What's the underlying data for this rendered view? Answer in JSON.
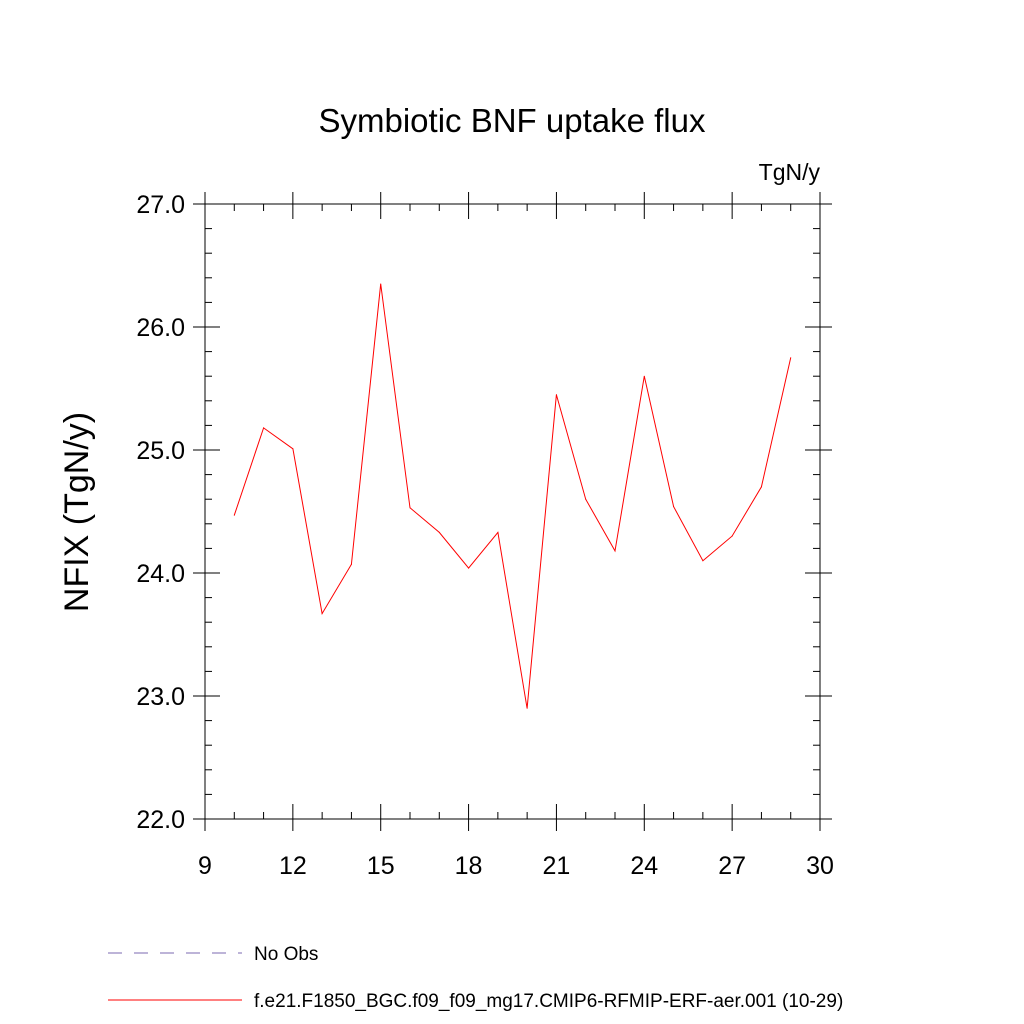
{
  "chart_data": {
    "type": "line",
    "title": "Symbiotic BNF uptake flux",
    "units_label": "TgN/y",
    "ylabel": "NFIX  (TgN/y)",
    "xlabel": "",
    "xlim": [
      9,
      30
    ],
    "ylim": [
      22.0,
      27.0
    ],
    "x_ticks": [
      9,
      12,
      15,
      18,
      21,
      24,
      27,
      30
    ],
    "x_tick_labels": [
      "9",
      "12",
      "15",
      "18",
      "21",
      "24",
      "27",
      "30"
    ],
    "y_ticks": [
      22.0,
      23.0,
      24.0,
      25.0,
      26.0,
      27.0
    ],
    "y_tick_labels": [
      "22.0",
      "23.0",
      "24.0",
      "25.0",
      "26.0",
      "27.0"
    ],
    "grid": false,
    "series": [
      {
        "name": "f.e21.F1850_BGC.f09_f09_mg17.CMIP6-RFMIP-ERF-aer.001 (10-29)",
        "color": "#ff0000",
        "x": [
          10,
          11,
          12,
          13,
          14,
          15,
          16,
          17,
          18,
          19,
          20,
          21,
          22,
          23,
          24,
          25,
          26,
          27,
          28,
          29
        ],
        "y": [
          24.47,
          25.18,
          25.01,
          23.67,
          24.07,
          26.35,
          24.53,
          24.33,
          24.04,
          24.33,
          22.9,
          25.45,
          24.6,
          24.18,
          25.6,
          24.54,
          24.1,
          24.3,
          24.7,
          25.75
        ]
      }
    ],
    "legend": {
      "placement": "bottom-left",
      "entries": [
        {
          "label": "No Obs",
          "color": "#7b68b0",
          "style": "dashed"
        },
        {
          "label": "f.e21.F1850_BGC.f09_f09_mg17.CMIP6-RFMIP-ERF-aer.001 (10-29)",
          "color": "#ff0000",
          "style": "solid"
        }
      ]
    }
  }
}
